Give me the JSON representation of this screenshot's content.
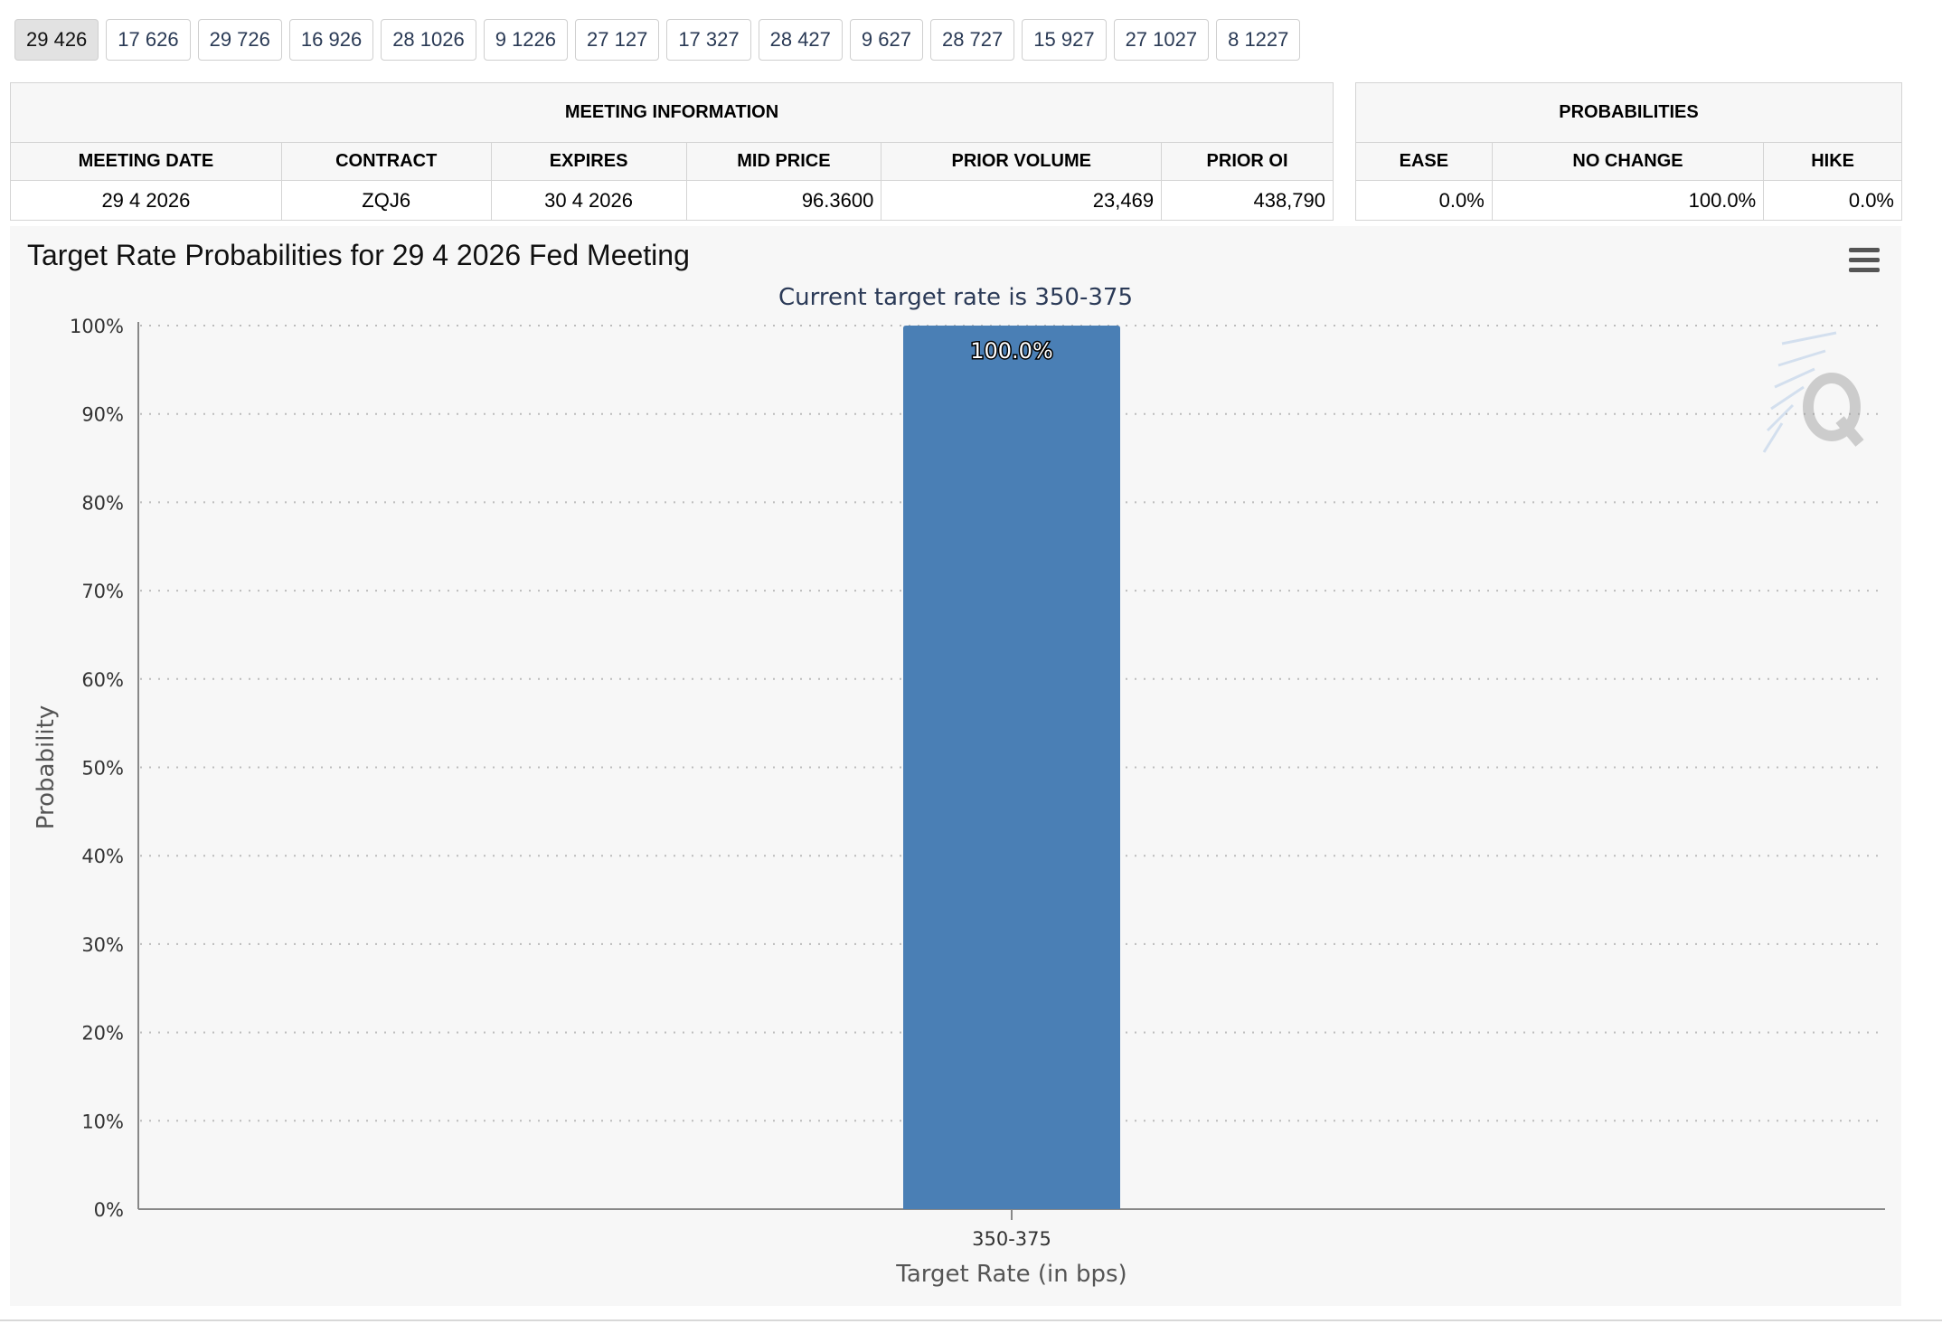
{
  "tabs": [
    "29 426",
    "17 626",
    "29 726",
    "16 926",
    "28 1026",
    "9 1226",
    "27 127",
    "17 327",
    "28 427",
    "9 627",
    "28 727",
    "15 927",
    "27 1027",
    "8 1227"
  ],
  "meeting_info": {
    "group_header": "MEETING INFORMATION",
    "headers": [
      "MEETING DATE",
      "CONTRACT",
      "EXPIRES",
      "MID PRICE",
      "PRIOR VOLUME",
      "PRIOR OI"
    ],
    "row": {
      "meeting_date": "29 4 2026",
      "contract": "ZQJ6",
      "expires": "30 4 2026",
      "mid_price": "96.3600",
      "prior_volume": "23,469",
      "prior_oi": "438,790"
    }
  },
  "probabilities": {
    "group_header": "PROBABILITIES",
    "headers": [
      "EASE",
      "NO CHANGE",
      "HIKE"
    ],
    "row": {
      "ease": "0.0%",
      "no_change": "100.0%",
      "hike": "0.0%"
    }
  },
  "chart": {
    "title": "Target Rate Probabilities for 29 4 2026 Fed Meeting",
    "menu_icon": "hamburger-menu-icon",
    "watermark_icon": "q-logo-icon",
    "bar_color": "#4a7fb5"
  },
  "chart_data": {
    "type": "bar",
    "title": "Target Rate Probabilities for 29 4 2026 Fed Meeting",
    "subtitle": "Current target rate is 350-375",
    "categories": [
      "350-375"
    ],
    "values": [
      100.0
    ],
    "data_labels": [
      "100.0%"
    ],
    "xlabel": "Target Rate (in bps)",
    "ylabel": "Probability",
    "ylim": [
      0,
      100
    ],
    "yticks": [
      "0%",
      "10%",
      "20%",
      "30%",
      "40%",
      "50%",
      "60%",
      "70%",
      "80%",
      "90%",
      "100%"
    ],
    "grid": true,
    "legend": "none"
  }
}
